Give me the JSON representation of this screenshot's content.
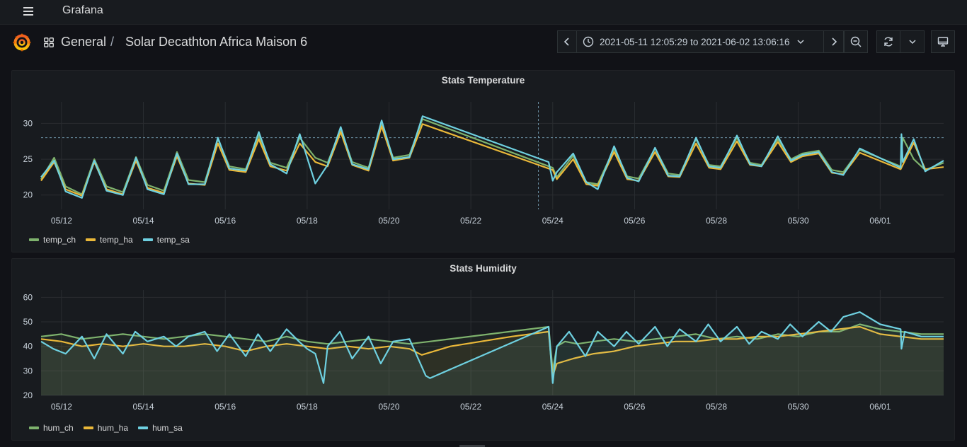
{
  "app": {
    "title": "Grafana"
  },
  "breadcrumb": {
    "folder": "General",
    "separator": "/",
    "dashboard": "Solar Decathton Africa Maison 6"
  },
  "time_range": {
    "from": "2021-05-11 12:05:29",
    "to_word": "to",
    "to": "2021-06-02 13:06:16"
  },
  "icons": {
    "menu": "hamburger-menu-icon",
    "logo": "grafana-logo-icon",
    "dashboards": "apps-grid-icon",
    "prev": "chevron-left-icon",
    "clock": "clock-icon",
    "caret": "chevron-down-icon",
    "next": "chevron-right-icon",
    "zoom_out": "zoom-out-icon",
    "refresh": "refresh-icon",
    "refresh_menu": "chevron-down-icon",
    "tv": "monitor-icon"
  },
  "colors": {
    "green": "#7eb26d",
    "yellow": "#eab839",
    "blue": "#6ed0e0",
    "background": "#181b1f",
    "grid": "#2a2d31"
  },
  "panels": [
    {
      "title": "Stats Temperature",
      "chart_data": {
        "type": "line",
        "title": "Stats Temperature",
        "x_ticks": [
          "05/12",
          "05/14",
          "05/16",
          "05/18",
          "05/20",
          "05/22",
          "05/24",
          "05/26",
          "05/28",
          "05/30",
          "06/01"
        ],
        "x_tick_days": [
          1,
          3,
          5,
          7,
          9,
          11,
          13,
          15,
          17,
          19,
          21
        ],
        "x_range_days": [
          0.5,
          22.55
        ],
        "y_ticks": [
          20,
          25,
          30
        ],
        "ylim": [
          18,
          33
        ],
        "threshold_line": 28,
        "crosshair_day": 12.65,
        "grid": true,
        "legend_placement": "bottom-left",
        "series": [
          {
            "name": "temp_ch",
            "color": "#7eb26d",
            "x": [
              0.5,
              0.82,
              1.1,
              1.5,
              1.8,
              2.1,
              2.5,
              2.82,
              3.1,
              3.5,
              3.82,
              4.1,
              4.5,
              4.82,
              5.1,
              5.5,
              5.82,
              6.1,
              6.5,
              6.82,
              7.2,
              7.5,
              7.82,
              8.1,
              8.5,
              8.82,
              9.1,
              9.5,
              9.82,
              13.0,
              13.1,
              13.5,
              13.82,
              14.1,
              14.5,
              14.82,
              15.1,
              15.5,
              15.82,
              16.1,
              16.5,
              16.82,
              17.1,
              17.5,
              17.82,
              18.1,
              18.5,
              18.82,
              19.1,
              19.5,
              19.82,
              20.1,
              20.5,
              21.5,
              21.55,
              21.82,
              22.1,
              22.55
            ],
            "y": [
              22.2,
              25.2,
              21.2,
              20.1,
              25.0,
              21.2,
              20.4,
              25.3,
              21.4,
              20.6,
              26.0,
              22.1,
              21.8,
              27.8,
              24.0,
              23.6,
              28.3,
              24.5,
              23.8,
              28.0,
              25.2,
              24.5,
              29.2,
              24.6,
              23.8,
              30.0,
              25.2,
              25.6,
              30.6,
              23.8,
              22.5,
              25.5,
              21.8,
              21.5,
              26.5,
              22.6,
              22.3,
              26.5,
              23.0,
              22.8,
              27.8,
              24.2,
              24.0,
              28.0,
              24.5,
              24.2,
              27.8,
              25.0,
              25.8,
              26.2,
              23.5,
              23.2,
              26.3,
              24.0,
              28.0,
              25.0,
              23.5,
              24.5
            ]
          },
          {
            "name": "temp_ha",
            "color": "#eab839",
            "x": [
              0.5,
              0.82,
              1.1,
              1.5,
              1.8,
              2.1,
              2.5,
              2.82,
              3.1,
              3.5,
              3.82,
              4.1,
              4.5,
              4.82,
              5.1,
              5.5,
              5.82,
              6.1,
              6.5,
              6.82,
              7.2,
              7.5,
              7.82,
              8.1,
              8.5,
              8.82,
              9.1,
              9.5,
              9.82,
              13.0,
              13.1,
              13.5,
              13.82,
              14.1,
              14.5,
              14.82,
              15.1,
              15.5,
              15.82,
              16.1,
              16.5,
              16.82,
              17.1,
              17.5,
              17.82,
              18.1,
              18.5,
              18.82,
              19.1,
              19.5,
              19.82,
              20.1,
              20.5,
              21.5,
              21.82,
              22.1,
              22.55
            ],
            "y": [
              22.0,
              24.6,
              20.8,
              19.9,
              24.6,
              20.8,
              20.1,
              24.8,
              21.0,
              20.3,
              25.4,
              21.6,
              21.4,
              27.2,
              23.5,
              23.2,
              27.8,
              24.0,
              23.4,
              27.2,
              24.6,
              24.0,
              28.8,
              24.2,
              23.4,
              29.6,
              24.8,
              25.2,
              29.9,
              23.5,
              22.2,
              25.0,
              21.5,
              21.3,
              26.0,
              22.2,
              22.0,
              26.0,
              22.6,
              22.5,
              27.2,
              23.8,
              23.6,
              27.5,
              24.2,
              24.0,
              27.4,
              24.6,
              25.4,
              25.8,
              23.1,
              22.9,
              25.9,
              23.6,
              27.3,
              23.6,
              23.9
            ]
          },
          {
            "name": "temp_sa",
            "color": "#6ed0e0",
            "x": [
              0.5,
              0.82,
              1.1,
              1.5,
              1.8,
              2.1,
              2.5,
              2.82,
              3.1,
              3.5,
              3.82,
              4.1,
              4.5,
              4.82,
              5.1,
              5.5,
              5.82,
              6.1,
              6.5,
              6.82,
              7.2,
              7.5,
              7.82,
              8.1,
              8.5,
              8.82,
              9.1,
              9.5,
              9.82,
              12.9,
              13.0,
              13.1,
              13.5,
              13.82,
              14.1,
              14.5,
              14.82,
              15.1,
              15.5,
              15.82,
              16.1,
              16.5,
              16.82,
              17.1,
              17.5,
              17.82,
              18.1,
              18.5,
              18.82,
              19.1,
              19.5,
              19.82,
              20.1,
              20.5,
              21.5,
              21.52,
              21.55,
              21.82,
              22.1,
              22.55
            ],
            "y": [
              22.5,
              24.8,
              20.5,
              19.6,
              24.8,
              20.6,
              20.0,
              25.2,
              20.8,
              20.1,
              25.8,
              21.5,
              21.5,
              28.0,
              23.7,
              23.4,
              28.8,
              24.3,
              23.0,
              28.5,
              21.6,
              24.2,
              29.5,
              24.3,
              23.6,
              30.4,
              25.0,
              25.3,
              31.0,
              24.6,
              22.0,
              23.2,
              25.8,
              21.8,
              20.8,
              26.8,
              22.4,
              21.9,
              26.6,
              22.7,
              22.6,
              28.0,
              24.0,
              23.8,
              28.3,
              24.3,
              24.0,
              28.2,
              24.8,
              25.6,
              26.0,
              23.2,
              22.8,
              26.5,
              23.8,
              28.5,
              24.6,
              27.8,
              23.3,
              24.8
            ]
          }
        ]
      },
      "legend": [
        "temp_ch",
        "temp_ha",
        "temp_sa"
      ]
    },
    {
      "title": "Stats Humidity",
      "chart_data": {
        "type": "area",
        "title": "Stats Humidity",
        "x_ticks": [
          "05/12",
          "05/14",
          "05/16",
          "05/18",
          "05/20",
          "05/22",
          "05/24",
          "05/26",
          "05/28",
          "05/30",
          "06/01"
        ],
        "x_tick_days": [
          1,
          3,
          5,
          7,
          9,
          11,
          13,
          15,
          17,
          19,
          21
        ],
        "x_range_days": [
          0.5,
          22.55
        ],
        "y_ticks": [
          20,
          30,
          40,
          50,
          60
        ],
        "ylim": [
          20,
          63
        ],
        "grid": true,
        "legend_placement": "bottom-left",
        "series": [
          {
            "name": "hum_ch",
            "color": "#7eb26d",
            "x": [
              0.5,
              1.0,
              1.5,
              2.0,
              2.5,
              3.0,
              3.5,
              4.0,
              4.5,
              5.0,
              5.5,
              6.0,
              6.5,
              7.0,
              7.5,
              8.0,
              8.5,
              9.0,
              9.5,
              10.0,
              12.9,
              13.0,
              13.1,
              13.3,
              13.6,
              14.0,
              14.5,
              15.0,
              15.5,
              16.0,
              16.5,
              17.0,
              17.5,
              18.0,
              18.5,
              19.0,
              19.5,
              20.0,
              20.5,
              21.0,
              21.5,
              22.0,
              22.55
            ],
            "y": [
              44,
              45,
              43,
              44,
              45,
              44,
              43,
              44,
              45,
              44,
              43,
              42,
              44,
              42,
              41,
              42,
              43,
              42,
              41,
              42,
              48,
              30,
              40,
              42,
              41,
              42,
              43,
              42,
              43,
              44,
              45,
              43,
              44,
              43,
              45,
              44,
              46,
              46,
              49,
              47,
              46,
              45,
              45
            ]
          },
          {
            "name": "hum_ha",
            "color": "#eab839",
            "x": [
              0.5,
              1.0,
              1.5,
              2.0,
              2.5,
              3.0,
              3.5,
              4.0,
              4.5,
              5.0,
              5.5,
              6.0,
              6.5,
              7.0,
              7.5,
              8.0,
              8.5,
              9.0,
              9.5,
              9.8,
              10.5,
              12.0,
              12.9,
              13.0,
              13.1,
              13.5,
              14.0,
              14.5,
              15.0,
              15.5,
              16.0,
              16.5,
              17.0,
              17.5,
              18.0,
              18.5,
              19.0,
              19.5,
              20.0,
              20.5,
              21.0,
              21.5,
              22.0,
              22.55
            ],
            "y": [
              43,
              42,
              40,
              41,
              40,
              41,
              40,
              40,
              41,
              40,
              38,
              40,
              41,
              40,
              39,
              40,
              39,
              40,
              39,
              36.5,
              40,
              44,
              46,
              28,
              33,
              35,
              37,
              38,
              40,
              41,
              42,
              42,
              43,
              43,
              44,
              44,
              45,
              46,
              47,
              48,
              45,
              44,
              43,
              43
            ]
          },
          {
            "name": "hum_sa",
            "color": "#6ed0e0",
            "x": [
              0.5,
              0.8,
              1.1,
              1.5,
              1.8,
              2.1,
              2.5,
              2.8,
              3.1,
              3.5,
              3.8,
              4.1,
              4.5,
              4.8,
              5.1,
              5.5,
              5.8,
              6.1,
              6.5,
              6.8,
              7.0,
              7.2,
              7.4,
              7.5,
              7.8,
              8.1,
              8.5,
              8.8,
              9.1,
              9.5,
              9.9,
              10.0,
              12.9,
              13.0,
              13.1,
              13.4,
              13.8,
              14.1,
              14.5,
              14.8,
              15.1,
              15.5,
              15.8,
              16.1,
              16.5,
              16.8,
              17.1,
              17.5,
              17.8,
              18.1,
              18.5,
              18.8,
              19.1,
              19.5,
              19.8,
              20.1,
              20.5,
              21.0,
              21.5,
              21.52,
              21.6,
              22.0,
              22.55
            ],
            "y": [
              42,
              39,
              37,
              44,
              35,
              45,
              37,
              46,
              42,
              44,
              40,
              44,
              46,
              38,
              45,
              36,
              45,
              38,
              47,
              42,
              39,
              37,
              25,
              40,
              46,
              35,
              44,
              33,
              42,
              43,
              28,
              27,
              48,
              25,
              40,
              46,
              36,
              46,
              40,
              46,
              41,
              48,
              40,
              47,
              42,
              49,
              42,
              48,
              41,
              46,
              43,
              49,
              44,
              50,
              46,
              52,
              54,
              49,
              47,
              39,
              46,
              44,
              44
            ]
          }
        ]
      },
      "legend": [
        "hum_ch",
        "hum_ha",
        "hum_sa"
      ]
    }
  ]
}
